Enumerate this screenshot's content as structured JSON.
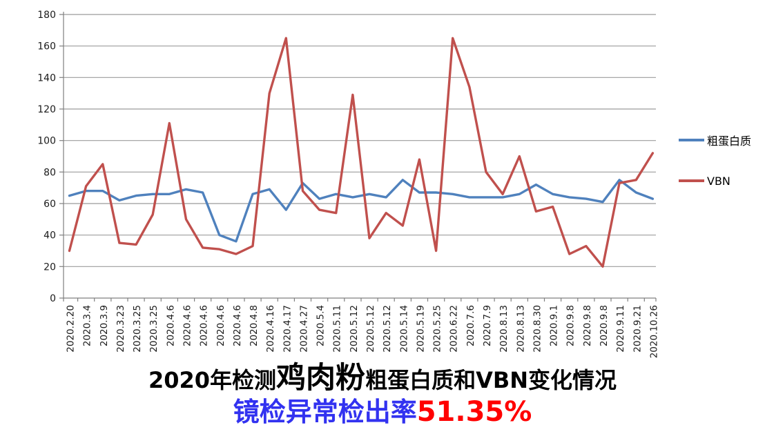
{
  "chart_data": {
    "type": "line",
    "title": "2020年检测鸡肉粉粗蛋白质和VBN变化情况",
    "subtitle": "镜检异常检出率51.35%",
    "xlabel": "",
    "ylabel": "",
    "ylim": [
      0,
      180
    ],
    "y_ticks": [
      0,
      20,
      40,
      60,
      80,
      100,
      120,
      140,
      160,
      180
    ],
    "grid": true,
    "legend_position": "right",
    "x_tick_label_rotation": -90,
    "categories": [
      "2020.2.20",
      "2020.3.4",
      "2020.3.9",
      "2020.3.23",
      "2020.3.25",
      "2020.3.25",
      "2020.4.6",
      "2020.4.6",
      "2020.4.6",
      "2020.4.6",
      "2020.4.6",
      "2020.4.8",
      "2020.4.16",
      "2020.4.17",
      "2020.4.27",
      "2020.5.4",
      "2020.5.11",
      "2020.5.12",
      "2020.5.12",
      "2020.5.12",
      "2020.5.14",
      "2020.5.19",
      "2020.5.25",
      "2020.6.22",
      "2020.7.6",
      "2020.7.9",
      "2020.8.13",
      "2020.8.13",
      "2020.8.30",
      "2020.9.1",
      "2020.9.8",
      "2020.9.8",
      "2020.9.8",
      "2020.9.11",
      "2020.9.21",
      "2020.10.26"
    ],
    "series": [
      {
        "name": "粗蛋白质",
        "color": "#4F81BD",
        "values": [
          65,
          68,
          68,
          62,
          65,
          66,
          66,
          69,
          67,
          40,
          36,
          66,
          69,
          56,
          73,
          63,
          66,
          64,
          66,
          64,
          75,
          67,
          67,
          66,
          64,
          64,
          64,
          66,
          72,
          66,
          64,
          63,
          61,
          75,
          67,
          63
        ]
      },
      {
        "name": "VBN",
        "color": "#C0504D",
        "values": [
          30,
          71,
          85,
          35,
          34,
          53,
          111,
          50,
          32,
          31,
          28,
          33,
          130,
          165,
          68,
          56,
          54,
          129,
          38,
          54,
          46,
          88,
          30,
          165,
          134,
          80,
          66,
          90,
          55,
          58,
          28,
          33,
          20,
          73,
          75,
          92
        ]
      }
    ]
  },
  "legend": {
    "items": [
      {
        "label": "粗蛋白质",
        "color": "#4F81BD"
      },
      {
        "label": "VBN",
        "color": "#C0504D"
      }
    ]
  },
  "title": {
    "part1": "2020年检测",
    "part2": "鸡肉粉",
    "part3": "粗蛋白质和VBN变化情况"
  },
  "subtitle": {
    "label": "镜检异常检出率",
    "value": "51.35%",
    "label_color": "#3232F0",
    "value_color": "#FF0000"
  },
  "colors": {
    "grid": "#9b9b9b",
    "axis": "#7f7f7f",
    "tick_text": "#1a1a1a",
    "background": "#FFFFFF",
    "title_text": "#000000"
  }
}
